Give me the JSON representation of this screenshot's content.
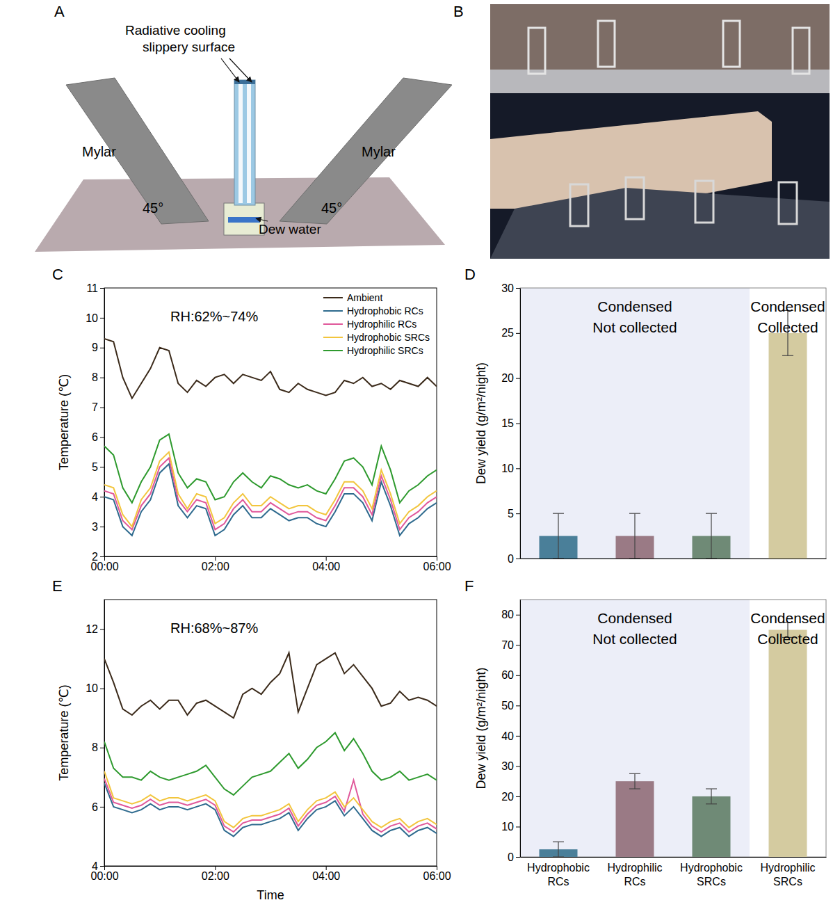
{
  "diagram": {
    "panel": "A",
    "surface_label": [
      "Radiative cooling",
      "slippery surface"
    ],
    "left_label": "Mylar",
    "right_label": "Mylar",
    "left_angle": "45°",
    "right_angle": "45°",
    "water_label": "Dew water"
  },
  "photo": {
    "panel": "B"
  },
  "chart_data": [
    {
      "type": "line",
      "panel": "C",
      "annotation": "RH:62%~74%",
      "ylabel": "Temperature (℃)",
      "x": [
        0,
        10,
        20,
        30,
        40,
        50,
        60,
        70,
        80,
        90,
        100,
        110,
        120,
        130,
        140,
        150,
        160,
        170,
        180,
        190,
        200,
        210,
        220,
        230,
        240,
        250,
        260,
        270,
        280,
        290,
        300,
        310,
        320,
        330,
        340,
        350,
        360
      ],
      "xlim": [
        0,
        360
      ],
      "xticks": [
        {
          "value": 0,
          "label": "00:00"
        },
        {
          "value": 120,
          "label": "02:00"
        },
        {
          "value": 240,
          "label": "04:00"
        },
        {
          "value": 360,
          "label": "06:00"
        }
      ],
      "ylim": [
        2,
        11
      ],
      "yticks": [
        2,
        3,
        4,
        5,
        6,
        7,
        8,
        9,
        10,
        11
      ],
      "legend": "upper right",
      "series": [
        {
          "name": "Ambient",
          "color": "#3b2a1a",
          "values": [
            9.3,
            9.2,
            8.0,
            7.3,
            7.8,
            8.3,
            9.0,
            8.9,
            7.8,
            7.5,
            7.9,
            7.7,
            8.0,
            8.1,
            7.8,
            8.1,
            8.0,
            7.9,
            8.2,
            7.6,
            7.5,
            7.8,
            7.6,
            7.5,
            7.4,
            7.5,
            7.9,
            7.8,
            8.0,
            7.7,
            7.8,
            7.6,
            7.9,
            7.8,
            7.7,
            8.0,
            7.7
          ]
        },
        {
          "name": "Hydrophobic RCs",
          "color": "#2e6a8e",
          "values": [
            4.0,
            3.9,
            3.0,
            2.7,
            3.5,
            3.9,
            4.8,
            5.1,
            3.7,
            3.3,
            3.7,
            3.6,
            2.7,
            2.9,
            3.4,
            3.7,
            3.3,
            3.3,
            3.6,
            3.4,
            3.2,
            3.3,
            3.3,
            3.1,
            3.0,
            3.5,
            4.1,
            4.1,
            3.8,
            3.2,
            4.5,
            3.7,
            2.7,
            3.1,
            3.3,
            3.6,
            3.8
          ]
        },
        {
          "name": "Hydrophilic RCs",
          "color": "#e0589a",
          "values": [
            4.2,
            4.1,
            3.2,
            2.9,
            3.7,
            4.1,
            5.0,
            5.3,
            3.9,
            3.5,
            3.9,
            3.8,
            2.9,
            3.1,
            3.6,
            3.9,
            3.5,
            3.5,
            3.8,
            3.6,
            3.4,
            3.5,
            3.5,
            3.3,
            3.2,
            3.7,
            4.3,
            4.3,
            4.0,
            3.4,
            4.7,
            3.9,
            2.9,
            3.3,
            3.5,
            3.8,
            4.0
          ]
        },
        {
          "name": "Hydrophobic SRCs",
          "color": "#f2c53d",
          "values": [
            4.4,
            4.3,
            3.4,
            3.0,
            3.9,
            4.3,
            5.2,
            5.5,
            4.1,
            3.6,
            4.1,
            4.0,
            3.1,
            3.3,
            3.8,
            4.1,
            3.7,
            3.7,
            4.0,
            3.8,
            3.6,
            3.7,
            3.7,
            3.5,
            3.4,
            3.9,
            4.5,
            4.5,
            4.2,
            3.6,
            4.9,
            4.1,
            3.1,
            3.5,
            3.7,
            4.0,
            4.2
          ]
        },
        {
          "name": "Hydrophilic SRCs",
          "color": "#2e9a2e",
          "values": [
            5.7,
            5.4,
            4.3,
            3.8,
            4.5,
            5.0,
            5.9,
            6.1,
            4.8,
            4.3,
            4.6,
            4.5,
            3.9,
            4.0,
            4.5,
            4.8,
            4.5,
            4.3,
            4.7,
            4.6,
            4.4,
            4.3,
            4.4,
            4.2,
            4.1,
            4.6,
            5.2,
            5.3,
            5.0,
            4.4,
            5.7,
            4.9,
            3.8,
            4.2,
            4.4,
            4.7,
            4.9
          ]
        }
      ]
    },
    {
      "type": "bar",
      "panel": "D",
      "ylabel": "Dew yield (g/m²/night)",
      "annotations": [
        {
          "lines": [
            "Condensed",
            "Not collected"
          ]
        },
        {
          "lines": [
            "Condensed",
            "Collected"
          ]
        }
      ],
      "categories": [
        null,
        null,
        null,
        null
      ],
      "values": [
        2.5,
        2.5,
        2.5,
        25
      ],
      "errors": [
        2.5,
        2.5,
        2.5,
        2.5
      ],
      "colors": [
        "#4a7f99",
        "#9a7a85",
        "#6f8a76",
        "#d4cba0"
      ],
      "ylim": [
        0,
        30
      ],
      "yticks": [
        0,
        5,
        10,
        15,
        20,
        25,
        30
      ],
      "tick_labels": "y"
    },
    {
      "type": "line",
      "panel": "E",
      "annotation": "RH:68%~87%",
      "ylabel": "Temperature (℃)",
      "xlabel": "Time",
      "x": [
        0,
        10,
        20,
        30,
        40,
        50,
        60,
        70,
        80,
        90,
        100,
        110,
        120,
        130,
        140,
        150,
        160,
        170,
        180,
        190,
        200,
        210,
        220,
        230,
        240,
        250,
        260,
        270,
        280,
        290,
        300,
        310,
        320,
        330,
        340,
        350,
        360
      ],
      "xlim": [
        0,
        360
      ],
      "xticks": [
        {
          "value": 0,
          "label": "00:00"
        },
        {
          "value": 120,
          "label": "02:00"
        },
        {
          "value": 240,
          "label": "04:00"
        },
        {
          "value": 360,
          "label": "06:00"
        }
      ],
      "ylim": [
        4,
        13
      ],
      "yticks": [
        4,
        6,
        8,
        10,
        12
      ],
      "series": [
        {
          "color": "#3b2a1a",
          "values": [
            11.0,
            10.2,
            9.3,
            9.1,
            9.4,
            9.6,
            9.3,
            9.6,
            9.6,
            9.1,
            9.5,
            9.6,
            9.4,
            9.2,
            9.0,
            9.8,
            10.0,
            9.8,
            10.2,
            10.5,
            11.2,
            9.2,
            10.0,
            10.8,
            11.0,
            11.2,
            10.5,
            10.8,
            10.4,
            10.0,
            9.4,
            9.5,
            9.9,
            9.6,
            9.7,
            9.6,
            9.4
          ]
        },
        {
          "color": "#2e6a8e",
          "values": [
            6.8,
            6.0,
            5.9,
            5.8,
            5.9,
            6.1,
            5.9,
            6.0,
            6.0,
            5.9,
            6.0,
            6.1,
            5.9,
            5.2,
            5.0,
            5.3,
            5.4,
            5.4,
            5.5,
            5.6,
            5.8,
            5.2,
            5.6,
            5.9,
            6.0,
            6.2,
            5.7,
            6.0,
            5.6,
            5.2,
            5.0,
            5.2,
            5.3,
            5.0,
            5.2,
            5.3,
            5.1
          ]
        },
        {
          "color": "#e0589a",
          "values": [
            6.95,
            6.15,
            6.05,
            5.95,
            6.05,
            6.25,
            6.05,
            6.15,
            6.15,
            6.05,
            6.15,
            6.25,
            6.05,
            5.35,
            5.15,
            5.45,
            5.55,
            5.55,
            5.65,
            5.75,
            5.95,
            5.35,
            5.75,
            6.05,
            6.15,
            6.35,
            5.85,
            6.9,
            5.75,
            5.35,
            5.15,
            5.35,
            5.45,
            5.15,
            5.35,
            5.45,
            5.25
          ]
        },
        {
          "color": "#f2c53d",
          "values": [
            7.2,
            6.3,
            6.2,
            6.1,
            6.2,
            6.4,
            6.2,
            6.3,
            6.3,
            6.2,
            6.3,
            6.4,
            6.2,
            5.5,
            5.3,
            5.6,
            5.7,
            5.7,
            5.8,
            5.9,
            6.1,
            5.5,
            5.9,
            6.2,
            6.3,
            6.5,
            6.0,
            6.3,
            5.9,
            5.5,
            5.3,
            5.5,
            5.6,
            5.3,
            5.5,
            5.6,
            5.4
          ]
        },
        {
          "color": "#2e9a2e",
          "values": [
            8.2,
            7.3,
            7.0,
            7.0,
            6.9,
            7.2,
            7.0,
            6.9,
            7.0,
            7.1,
            7.2,
            7.4,
            7.0,
            6.6,
            6.4,
            6.7,
            7.0,
            7.1,
            7.2,
            7.5,
            7.8,
            7.3,
            7.6,
            8.0,
            8.2,
            8.5,
            7.9,
            8.3,
            7.8,
            7.2,
            6.9,
            7.0,
            7.2,
            6.9,
            7.0,
            7.1,
            6.9
          ]
        }
      ]
    },
    {
      "type": "bar",
      "panel": "F",
      "ylabel": "Dew yield (g/m²/night)",
      "annotations": [
        {
          "lines": [
            "Condensed",
            "Not collected"
          ]
        },
        {
          "lines": [
            "Condensed",
            "Collected"
          ]
        }
      ],
      "categories": [
        "Hydrophobic RCs",
        "Hydrophilic RCs",
        "Hydrophobic SRCs",
        "Hydrophilic SRCs"
      ],
      "values": [
        2.5,
        25,
        20,
        75
      ],
      "errors": [
        2.5,
        2.5,
        2.5,
        2.5
      ],
      "colors": [
        "#4a7f99",
        "#9a7a85",
        "#6f8a76",
        "#d4cba0"
      ],
      "ylim": [
        0,
        85
      ],
      "yticks": [
        0,
        10,
        20,
        30,
        40,
        50,
        60,
        70,
        80
      ]
    }
  ]
}
